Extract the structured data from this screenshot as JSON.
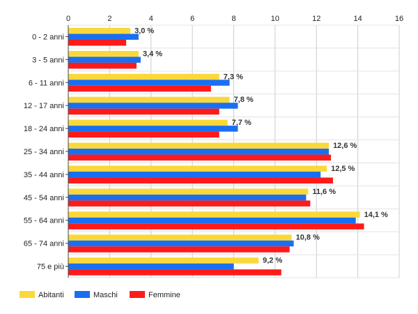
{
  "chart_data": {
    "type": "bar",
    "orientation": "horizontal",
    "categories": [
      "0 - 2 anni",
      "3 - 5 anni",
      "6 - 11 anni",
      "12 - 17 anni",
      "18 - 24 anni",
      "25 - 34 anni",
      "35 - 44 anni",
      "45 - 54 anni",
      "55 - 64 anni",
      "65 - 74 anni",
      "75 e più"
    ],
    "series": [
      {
        "name": "Abitanti",
        "color": "#fbd83a",
        "values": [
          3.0,
          3.4,
          7.3,
          7.8,
          7.7,
          12.6,
          12.5,
          11.6,
          14.1,
          10.8,
          9.2
        ]
      },
      {
        "name": "Maschi",
        "color": "#1a6ff0",
        "values": [
          3.4,
          3.5,
          7.8,
          8.2,
          8.2,
          12.6,
          12.2,
          11.5,
          13.9,
          10.9,
          8.0
        ]
      },
      {
        "name": "Femmine",
        "color": "#ff1a1a",
        "values": [
          2.8,
          3.3,
          6.9,
          7.3,
          7.3,
          12.7,
          12.8,
          11.7,
          14.3,
          10.7,
          10.3
        ]
      }
    ],
    "data_labels": [
      "3,0 %",
      "3,4 %",
      "7,3 %",
      "7,8 %",
      "7,7 %",
      "12,6 %",
      "12,5 %",
      "11,6 %",
      "14,1 %",
      "10,8 %",
      "9,2 %"
    ],
    "x_ticks": [
      0,
      2,
      4,
      6,
      8,
      10,
      12,
      14,
      16
    ],
    "xlim": [
      0,
      16
    ],
    "grid": true,
    "legend_position": "bottom-left",
    "title": "",
    "xlabel": "",
    "ylabel": ""
  }
}
